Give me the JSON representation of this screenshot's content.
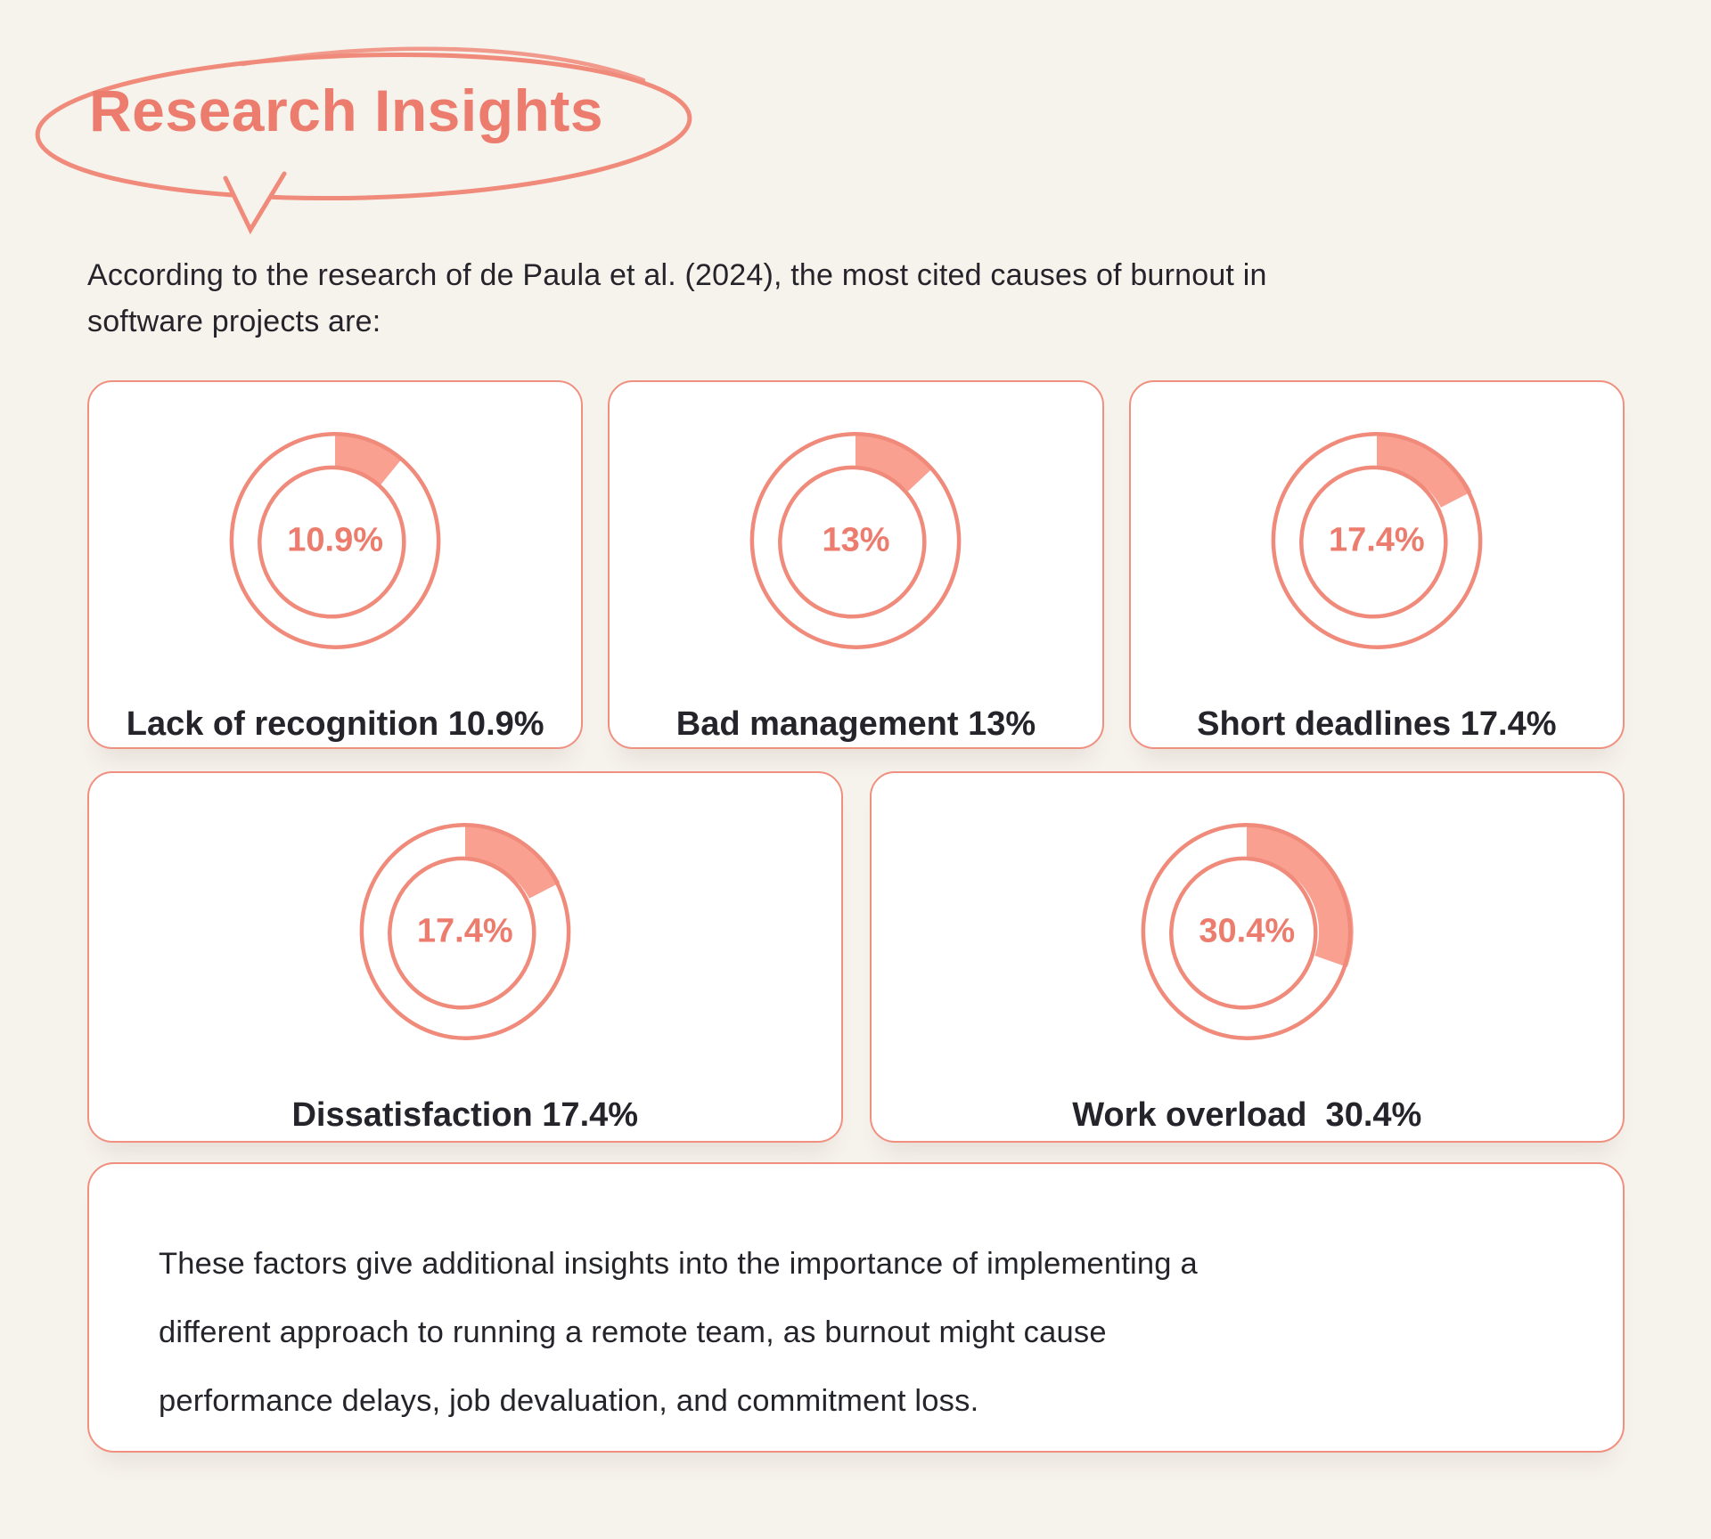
{
  "theme": {
    "background": "#F6F2EC",
    "accent": "#EC7D6E",
    "donut_stroke": "#F08A7A",
    "wedge_fill": "#F9A091",
    "card_border": "#F09080",
    "dark_text": "#26242B",
    "card_background": "#FFFFFF"
  },
  "header": {
    "title": "Research Insights"
  },
  "intro": {
    "lines": [
      "According to the research of de Paula et al. (2024), the most cited causes of burnout in",
      "software projects are:"
    ]
  },
  "cards": [
    {
      "label": "Lack of recognition 10.9%",
      "pct": 10.9,
      "pct_label": "10.9%"
    },
    {
      "label": "Bad management 13%",
      "pct": 13,
      "pct_label": "13%"
    },
    {
      "label": "Short deadlines 17.4%",
      "pct": 17.4,
      "pct_label": "17.4%"
    },
    {
      "label": "Dissatisfaction 17.4%",
      "pct": 17.4,
      "pct_label": "17.4%"
    },
    {
      "label": "Work overload  30.4%",
      "pct": 30.4,
      "pct_label": "30.4%"
    }
  ],
  "note": {
    "lines": [
      "These factors give additional insights into the importance of implementing a",
      "different approach to running a remote team, as burnout might cause",
      "performance delays, job devaluation, and commitment loss."
    ]
  },
  "chart_data": {
    "type": "pie",
    "subtype": "donut-gauge-set",
    "title": "Research Insights",
    "categories": [
      "Lack of recognition",
      "Bad management",
      "Short deadlines",
      "Dissatisfaction",
      "Work overload"
    ],
    "values": [
      10.9,
      13,
      17.4,
      17.4,
      30.4
    ],
    "unit": "%",
    "legend_position": "none",
    "notes": "Five hand-drawn style donut gauges; filled wedge starts at 12 o'clock, clockwise"
  }
}
